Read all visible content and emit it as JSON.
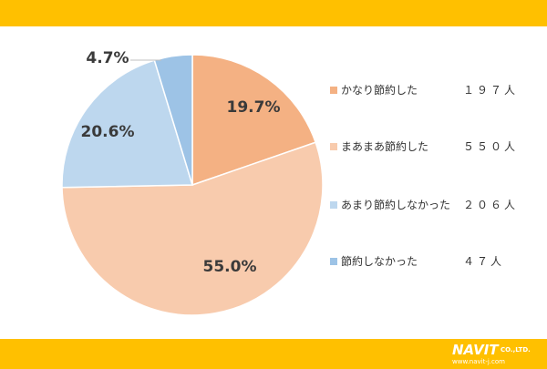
{
  "colors": {
    "band": "#ffc000",
    "slice_colors": [
      "#f4b183",
      "#f8cbad",
      "#bdd7ee",
      "#9dc3e6"
    ]
  },
  "chart_data": {
    "type": "pie",
    "categories": [
      "かなり節約した",
      "まあまあ節約した",
      "あまり節約しなかった",
      "節約しなかった"
    ],
    "values": [
      197,
      550,
      206,
      47
    ],
    "percent_labels": [
      "19.7%",
      "55.0%",
      "20.6%",
      "4.7%"
    ],
    "legend_counts": [
      "１９７人",
      "５５０人",
      "２０６人",
      "４７人"
    ],
    "legend_position": "right"
  },
  "logo": {
    "brand": "NAVIT",
    "suffix": "CO.,LTD.",
    "url": "www.navit-j.com"
  }
}
